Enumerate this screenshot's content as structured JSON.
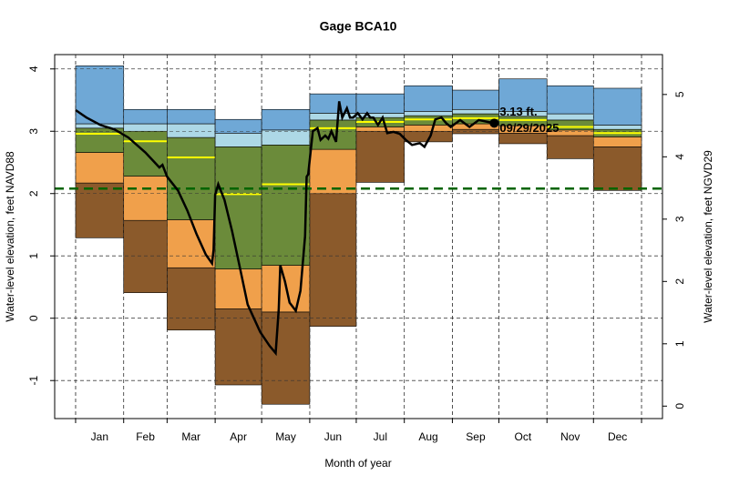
{
  "chart_data": {
    "type": "percentile-bands",
    "title": "Gage BCA10",
    "xlabel": "Month of year",
    "ylabel": "Water-level elevation, feet NAVD88",
    "y2label": "Water-level elevation, feet NGVD29",
    "categories": [
      "Jan",
      "Feb",
      "Mar",
      "Apr",
      "May",
      "Jun",
      "Jul",
      "Aug",
      "Sep",
      "Oct",
      "Nov",
      "Dec"
    ],
    "xticks": [
      0,
      31,
      59,
      90,
      120,
      151,
      181,
      212,
      243,
      273,
      304,
      334,
      365
    ],
    "xlim": [
      -13.5,
      378.5
    ],
    "ylim": [
      -1.61,
      4.23
    ],
    "yticks": [
      -1,
      0,
      1,
      2,
      3,
      4
    ],
    "y2lim": [
      -0.2,
      5.64
    ],
    "y2ticks": [
      0,
      1,
      2,
      3,
      4,
      5
    ],
    "grid": true,
    "levels": [
      [
        1.29,
        0.41,
        -0.19,
        -1.07,
        -1.38,
        -0.13,
        2.18,
        2.83,
        2.96,
        2.8,
        2.56,
        2.05
      ],
      [
        2.17,
        1.57,
        0.81,
        0.15,
        0.1,
        2.0,
        3.0,
        3.0,
        3.03,
        2.97,
        2.93,
        2.75
      ],
      [
        2.66,
        2.28,
        1.58,
        0.79,
        0.85,
        2.71,
        3.07,
        3.1,
        3.12,
        3.09,
        3.02,
        2.91
      ],
      [
        3.05,
        3.0,
        2.9,
        2.75,
        2.78,
        3.18,
        3.22,
        3.25,
        3.28,
        3.24,
        3.18,
        3.03
      ],
      [
        3.12,
        3.12,
        3.12,
        2.97,
        3.02,
        3.29,
        3.29,
        3.32,
        3.35,
        3.32,
        3.28,
        3.1
      ],
      [
        4.05,
        3.35,
        3.35,
        3.19,
        3.35,
        3.6,
        3.6,
        3.73,
        3.66,
        3.84,
        3.73,
        3.69
      ]
    ],
    "band_colors": [
      "#8b5a2b",
      "#f0a04b",
      "#6b8b3a",
      "#add8e6",
      "#6fa8d6"
    ],
    "median": [
      2.96,
      2.84,
      2.58,
      1.99,
      2.15,
      3.05,
      3.15,
      3.19,
      3.21,
      3.18,
      3.07,
      2.97
    ],
    "median_color": "#ffff00",
    "reference_line": 2.08,
    "reference_color": "#006400",
    "line": {
      "color": "#000000",
      "x": [
        0,
        7,
        16,
        25,
        34,
        45,
        54,
        56,
        59,
        66,
        72,
        78,
        84,
        88,
        89,
        90,
        92,
        96,
        101,
        106,
        111,
        119,
        125,
        129,
        131,
        132,
        135,
        138,
        142,
        145,
        148,
        149,
        150,
        153,
        156,
        158,
        161,
        163,
        165,
        168,
        170,
        172,
        175,
        177,
        179,
        182,
        185,
        188,
        190,
        192,
        195,
        198,
        201,
        205,
        209,
        213,
        217,
        222,
        225,
        229,
        232,
        236,
        239,
        242,
        248,
        254,
        260,
        266,
        270
      ],
      "values": [
        3.34,
        3.22,
        3.1,
        3.03,
        2.9,
        2.66,
        2.42,
        2.46,
        2.27,
        2.05,
        1.73,
        1.35,
        1.02,
        0.88,
        1.1,
        1.98,
        2.15,
        1.9,
        1.39,
        0.81,
        0.22,
        -0.22,
        -0.44,
        -0.56,
        0.15,
        0.85,
        0.59,
        0.25,
        0.12,
        0.44,
        1.32,
        2.27,
        2.31,
        3.0,
        3.05,
        2.86,
        2.93,
        2.88,
        3.0,
        2.83,
        3.48,
        3.22,
        3.37,
        3.22,
        3.22,
        3.29,
        3.19,
        3.29,
        3.22,
        3.22,
        3.1,
        3.22,
        2.97,
        2.99,
        2.96,
        2.86,
        2.78,
        2.81,
        2.75,
        2.93,
        3.19,
        3.22,
        3.13,
        3.07,
        3.18,
        3.07,
        3.18,
        3.15,
        3.13
      ]
    },
    "current": {
      "x": 270,
      "value": 3.13,
      "label": "3.13 ft.",
      "date": "09/29/2025"
    }
  }
}
